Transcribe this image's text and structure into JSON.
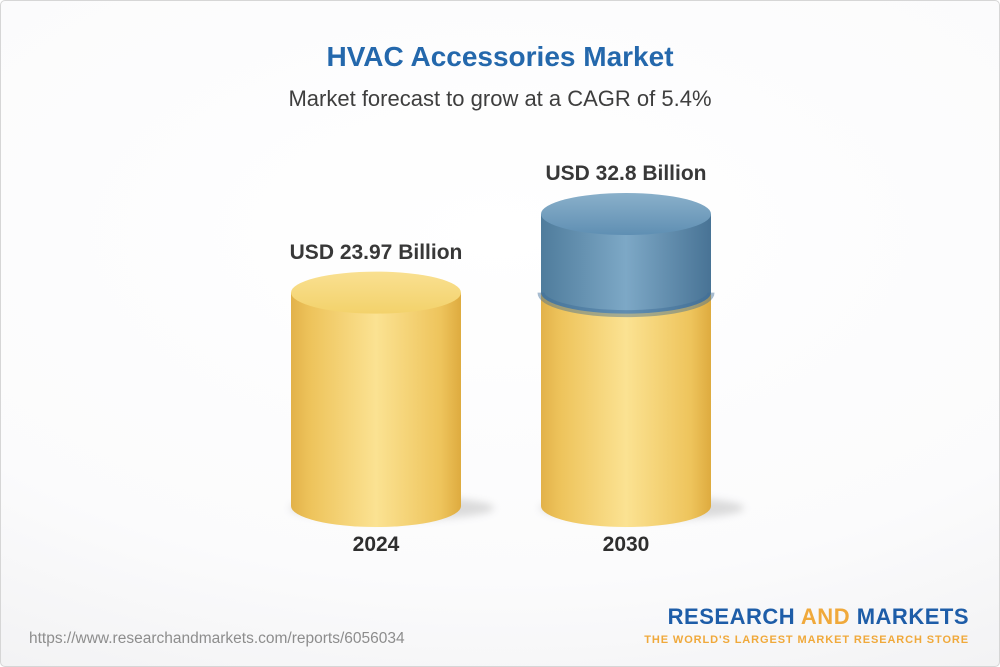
{
  "page": {
    "title": "HVAC Accessories Market",
    "subtitle": "Market forecast to grow at a CAGR of 5.4%"
  },
  "chart_data": {
    "type": "bar",
    "style": "3d-cylinder",
    "title": "HVAC Accessories Market",
    "subtitle": "Market forecast to grow at a CAGR of 5.4%",
    "cagr": "5.4%",
    "unit": "USD Billion",
    "categories": [
      "2024",
      "2030"
    ],
    "values": [
      23.97,
      32.8
    ],
    "value_labels": [
      "USD 23.97 Billion",
      "USD 32.8 Billion"
    ],
    "ylim": [
      0,
      32.8
    ],
    "grid": false,
    "legend": false,
    "colors": {
      "base_segment": "#F5CE63",
      "growth_segment": "#6593B8"
    },
    "series": [
      {
        "name": "base",
        "values": [
          23.97,
          23.97
        ],
        "color": "#F5CE63"
      },
      {
        "name": "growth",
        "values": [
          0,
          8.83
        ],
        "color": "#6593B8"
      }
    ]
  },
  "footer": {
    "url": "https://www.researchandmarkets.com/reports/6056034",
    "logo": {
      "part1": "RESEARCH",
      "part2": "AND",
      "part3": "MARKETS",
      "tagline": "THE WORLD'S LARGEST MARKET RESEARCH STORE",
      "blue": "#1E5DA8",
      "gold": "#F0A93B"
    }
  }
}
